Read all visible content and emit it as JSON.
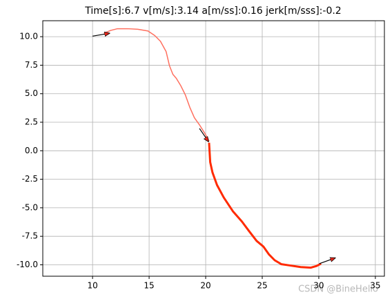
{
  "chart_data": {
    "type": "line",
    "title": "Time[s]:6.7 v[m/s]:3.14 a[m/ss]:0.16 jerk[m/sss]:-0.2",
    "watermark": "CSDN @BineHello",
    "xlim": [
      5.6,
      35.8
    ],
    "ylim": [
      -11.0,
      11.4
    ],
    "xticks": [
      10,
      15,
      20,
      25,
      30,
      35
    ],
    "yticks": [
      {
        "value": -10,
        "label": "-10.0"
      },
      {
        "value": -7.5,
        "label": "-7.5"
      },
      {
        "value": -5,
        "label": "-5.0"
      },
      {
        "value": -2.5,
        "label": "-2.5"
      },
      {
        "value": 0,
        "label": "0.0"
      },
      {
        "value": 2.5,
        "label": "2.5"
      },
      {
        "value": 5,
        "label": "5.0"
      },
      {
        "value": 7.5,
        "label": "7.5"
      },
      {
        "value": 10,
        "label": "10.0"
      }
    ],
    "grid": true,
    "series": [
      {
        "color": "#ff6f5e",
        "width": 1.5,
        "x": [
          11.0,
          11.6,
          12.2,
          13.1,
          14.0,
          14.9,
          15.5,
          16.0,
          16.5,
          16.8,
          17.1,
          17.4,
          17.8,
          18.2,
          18.6,
          19.0,
          19.5,
          20.0,
          20.3
        ],
        "values": [
          10.3,
          10.55,
          10.7,
          10.7,
          10.65,
          10.5,
          10.1,
          9.6,
          8.7,
          7.45,
          6.7,
          6.35,
          5.7,
          4.9,
          3.8,
          2.9,
          2.2,
          1.4,
          0.85
        ]
      },
      {
        "color": "#ff2a00",
        "width": 3,
        "x": [
          20.3,
          20.4,
          20.6,
          21.0,
          21.6,
          22.4,
          23.2,
          23.8,
          24.5,
          25.1,
          25.6,
          26.1,
          26.7,
          27.4,
          28.4,
          29.3,
          29.8,
          30.2
        ],
        "values": [
          0.7,
          -1.0,
          -1.9,
          -3.0,
          -4.1,
          -5.3,
          -6.2,
          -7.0,
          -7.9,
          -8.4,
          -9.1,
          -9.6,
          -9.95,
          -10.05,
          -10.2,
          -10.25,
          -10.1,
          -9.9
        ]
      }
    ],
    "arrows": [
      {
        "x": [
          10.0,
          11.5
        ],
        "y": [
          10.05,
          10.3
        ]
      },
      {
        "x": [
          19.45,
          20.25
        ],
        "y": [
          1.95,
          0.8
        ]
      },
      {
        "x": [
          30.05,
          31.45
        ],
        "y": [
          -9.9,
          -9.4
        ]
      }
    ]
  }
}
